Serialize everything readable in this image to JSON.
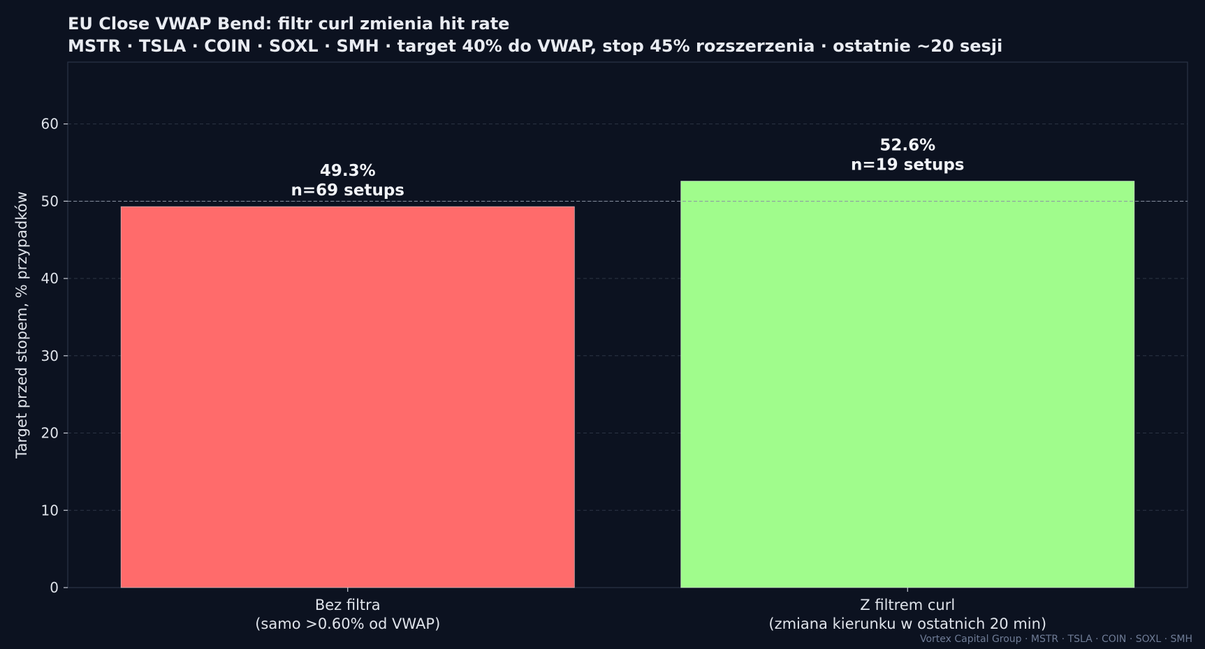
{
  "chart_data": {
    "type": "bar",
    "title": "EU Close VWAP Bend: filtr curl zmienia hit rate",
    "subtitle": "MSTR · TSLA · COIN · SOXL · SMH  ·  target 40% do VWAP, stop 45% rozszerzenia  ·  ostatnie ~20 sesji",
    "ylabel": "Target przed stopem, % przypadków",
    "xlabel": "",
    "categories": [
      {
        "line1": "Bez filtra",
        "line2": "(samo >0.60% od VWAP)"
      },
      {
        "line1": "Z filtrem curl",
        "line2": "(zmiana kierunku w ostatnich 20 min)"
      }
    ],
    "values": [
      49.3,
      52.6
    ],
    "value_labels": [
      "49.3%",
      "52.6%"
    ],
    "count_labels": [
      "n=69 setups",
      "n=19 setups"
    ],
    "colors": [
      "#ff6b6b",
      "#a0fc8c"
    ],
    "ylim": [
      0,
      68
    ],
    "yticks": [
      0,
      10,
      20,
      30,
      40,
      50,
      60
    ],
    "reference_line": 50,
    "grid": true,
    "background": "#0c1220"
  },
  "footer": "Vortex Capital Group  ·  MSTR · TSLA · COIN · SOXL · SMH"
}
